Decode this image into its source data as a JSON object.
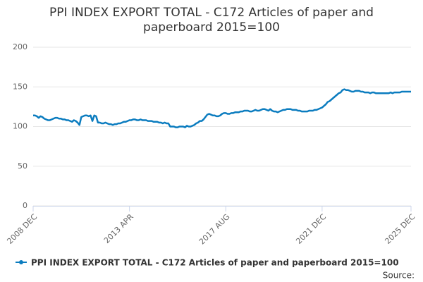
{
  "chart_data": {
    "type": "line",
    "title": "PPI INDEX EXPORT TOTAL - C172 Articles of paper and paperboard 2015=100",
    "source": "Source:",
    "categories": [
      "2008 DEC",
      null,
      null,
      null,
      null,
      null,
      null,
      null,
      null,
      null,
      null,
      null,
      null,
      null,
      null,
      null,
      null,
      null,
      null,
      null,
      null,
      null,
      null,
      null,
      null,
      null,
      null,
      null,
      null,
      null,
      null,
      null,
      null,
      null,
      null,
      null,
      null,
      null,
      null,
      null,
      null,
      null,
      null,
      null,
      null,
      null,
      null,
      null,
      null,
      null,
      null,
      null,
      "2013 APR",
      null,
      null,
      null,
      null,
      null,
      null,
      null,
      null,
      null,
      null,
      null,
      null,
      null,
      null,
      null,
      null,
      null,
      null,
      null,
      null,
      null,
      null,
      null,
      null,
      null,
      null,
      null,
      null,
      null,
      null,
      null,
      null,
      null,
      null,
      null,
      null,
      null,
      null,
      null,
      null,
      null,
      null,
      null,
      null,
      null,
      null,
      null,
      null,
      null,
      null,
      null,
      "2017 AUG",
      null,
      null,
      null,
      null,
      null,
      null,
      null,
      null,
      null,
      null,
      null,
      null,
      null,
      null,
      null,
      null,
      null,
      null,
      null,
      null,
      null,
      null,
      null,
      null,
      null,
      null,
      null,
      null,
      null,
      null,
      null,
      null,
      null,
      null,
      null,
      null,
      null,
      null,
      null,
      null,
      null,
      null,
      null,
      null,
      null,
      null,
      null,
      null,
      null,
      null,
      null,
      "2021 DEC",
      null,
      null,
      null,
      null,
      null,
      null,
      null,
      null,
      null,
      null,
      null,
      null,
      null,
      null,
      null,
      null,
      null,
      null,
      null,
      null,
      null,
      null,
      null,
      null,
      null,
      null,
      null,
      null,
      null,
      null,
      null,
      null,
      null,
      null,
      null,
      null,
      null,
      null,
      null,
      null,
      null,
      null,
      null,
      null,
      null,
      null,
      null,
      "2025 DEC"
    ],
    "series": [
      {
        "name": "PPI INDEX EXPORT TOTAL - C172 Articles of paper and paperboard 2015=100",
        "color": "#0b7cbf",
        "values": [
          114,
          114,
          113,
          111,
          113,
          112,
          110,
          109,
          108,
          108,
          109,
          110,
          111,
          111,
          110,
          110,
          109,
          109,
          108,
          108,
          107,
          106,
          108,
          107,
          105,
          102,
          112,
          113,
          114,
          114,
          113,
          114,
          107,
          114,
          113,
          105,
          105,
          104,
          104,
          105,
          104,
          103,
          103,
          102,
          103,
          103,
          104,
          104,
          105,
          106,
          106,
          107,
          108,
          108,
          109,
          109,
          108,
          108,
          109,
          108,
          108,
          108,
          107,
          107,
          107,
          106,
          106,
          106,
          105,
          105,
          104,
          105,
          104,
          104,
          100,
          100,
          100,
          99,
          99,
          100,
          100,
          100,
          99,
          101,
          100,
          100,
          101,
          102,
          104,
          105,
          107,
          107,
          109,
          112,
          115,
          116,
          115,
          114,
          114,
          113,
          113,
          114,
          116,
          117,
          117,
          116,
          116,
          117,
          117,
          118,
          118,
          118,
          119,
          119,
          120,
          120,
          120,
          119,
          119,
          120,
          121,
          120,
          120,
          121,
          122,
          122,
          121,
          120,
          122,
          120,
          119,
          119,
          118,
          119,
          120,
          121,
          121,
          122,
          122,
          122,
          121,
          121,
          121,
          120,
          120,
          119,
          119,
          119,
          119,
          120,
          120,
          120,
          121,
          121,
          122,
          123,
          124,
          126,
          128,
          131,
          132,
          134,
          136,
          138,
          140,
          142,
          143,
          146,
          147,
          146,
          146,
          145,
          144,
          144,
          145,
          145,
          145,
          144,
          144,
          143,
          143,
          143,
          142,
          143,
          143,
          142,
          142,
          142,
          142,
          142,
          142,
          142,
          142,
          143,
          142,
          143,
          143,
          143,
          143,
          144,
          144,
          144,
          144,
          144,
          144
        ]
      }
    ],
    "ylim": [
      0,
      200
    ],
    "yticks": [
      0,
      50,
      100,
      150,
      200
    ],
    "grid": true
  }
}
